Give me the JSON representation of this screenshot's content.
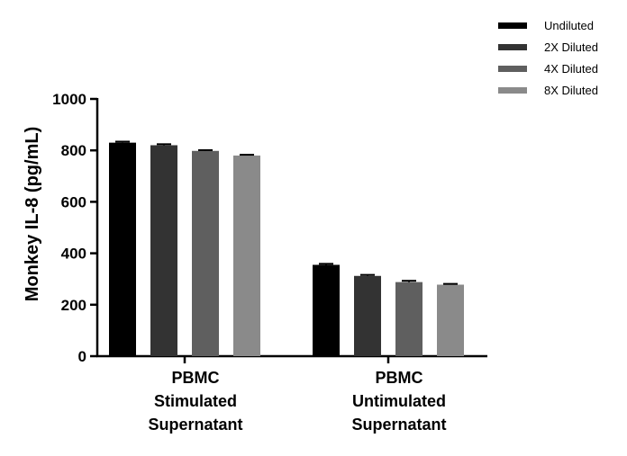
{
  "chart_data": {
    "type": "bar",
    "title": "",
    "xlabel": "",
    "ylabel": "Monkey IL-8 (pg/mL)",
    "ylim": [
      0,
      1000
    ],
    "yticks": [
      "0",
      "200",
      "400",
      "600",
      "800",
      "1000"
    ],
    "categories": [
      [
        "PBMC",
        "Stimulated",
        "Supernatant"
      ],
      [
        "PBMC",
        "Untimulated",
        "Supernatant"
      ]
    ],
    "series": [
      {
        "name": "Undiluted",
        "color": "#000000",
        "values": [
          830,
          355
        ],
        "errors": [
          4,
          4
        ]
      },
      {
        "name": "2X Diluted",
        "color": "#333333",
        "values": [
          820,
          312
        ],
        "errors": [
          4,
          4
        ]
      },
      {
        "name": "4X Diluted",
        "color": "#5f5f5f",
        "values": [
          798,
          288
        ],
        "errors": [
          3,
          5
        ]
      },
      {
        "name": "8X Diluted",
        "color": "#8a8a8a",
        "values": [
          780,
          278
        ],
        "errors": [
          3,
          3
        ]
      }
    ],
    "legend": "top-right",
    "grid": false
  }
}
